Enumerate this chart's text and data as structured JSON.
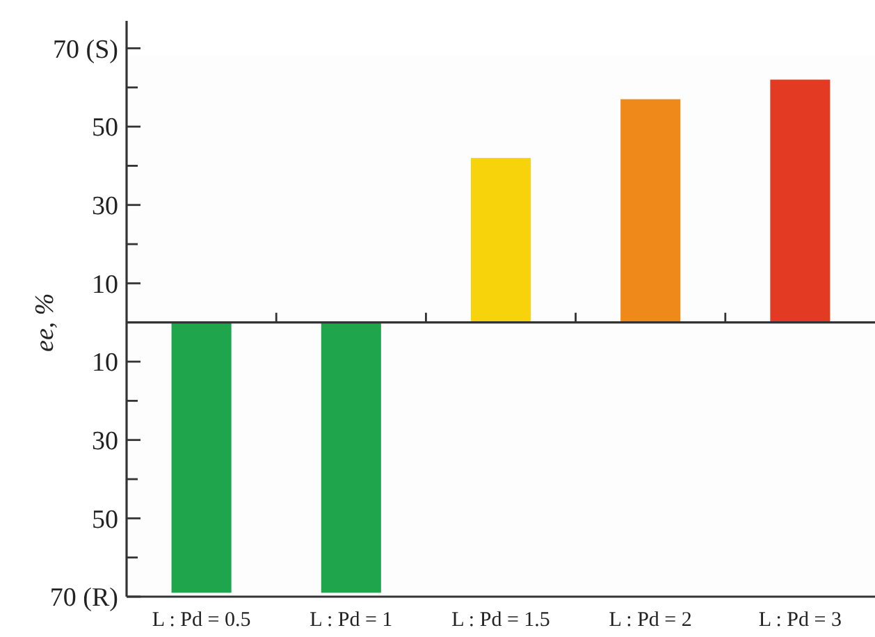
{
  "chart_data": {
    "type": "bar",
    "ylabel": "ee, %",
    "categories": [
      "L : Pd = 0.5",
      "L : Pd = 1",
      "L : Pd = 1.5",
      "L : Pd = 2",
      "L : Pd = 3"
    ],
    "values": [
      -69,
      -69,
      42,
      57,
      62
    ],
    "colors": [
      "#1fa64d",
      "#1fa64d",
      "#f7d30c",
      "#ef8a1a",
      "#e23a23"
    ],
    "ylim": [
      -70,
      77
    ],
    "yticks": [
      {
        "value": -70,
        "label": "70 (R)"
      },
      {
        "value": -60,
        "label": null
      },
      {
        "value": -50,
        "label": "50"
      },
      {
        "value": -40,
        "label": null
      },
      {
        "value": -30,
        "label": "30"
      },
      {
        "value": -20,
        "label": null
      },
      {
        "value": -10,
        "label": "10"
      },
      {
        "value": 10,
        "label": "10"
      },
      {
        "value": 20,
        "label": null
      },
      {
        "value": 30,
        "label": "30"
      },
      {
        "value": 40,
        "label": null
      },
      {
        "value": 50,
        "label": "50"
      },
      {
        "value": 60,
        "label": null
      },
      {
        "value": 70,
        "label": "70 (S)"
      }
    ],
    "grid": false
  }
}
